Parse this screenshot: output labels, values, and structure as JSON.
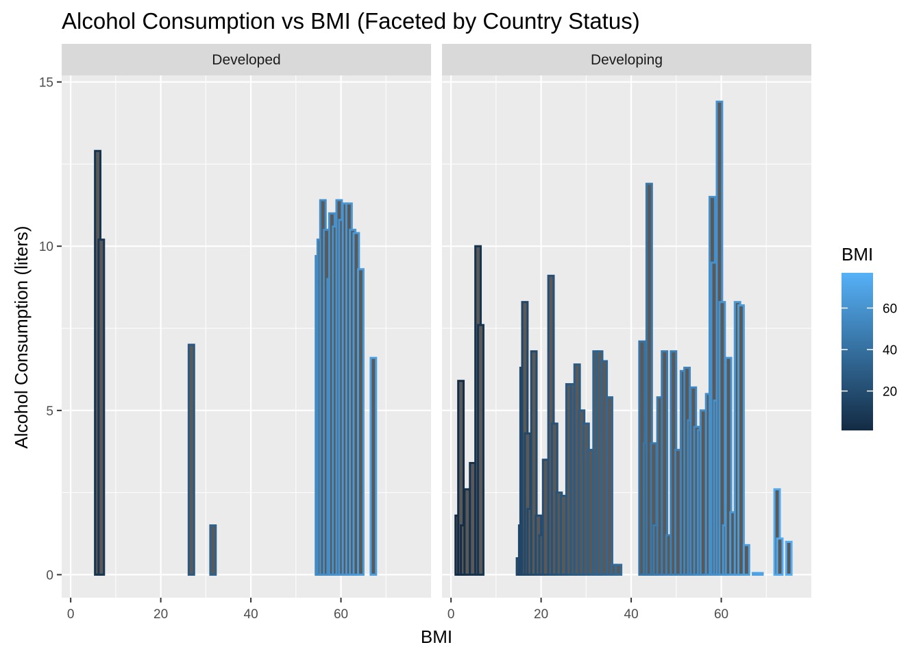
{
  "chart_data": {
    "type": "bar",
    "title": "Alcohol Consumption vs BMI (Faceted by Country Status)",
    "xlabel": "BMI",
    "ylabel": "Alcohol Consumption (liters)",
    "xlim": [
      -2,
      80
    ],
    "ylim": [
      -0.7,
      15.2
    ],
    "x_ticks": [
      0,
      20,
      40,
      60
    ],
    "y_ticks": [
      0,
      5,
      10,
      15
    ],
    "grid": true,
    "bar_fill": "#595959",
    "colors": {
      "low": "#132B43",
      "high": "#56B1F7",
      "panel_bg": "#EBEBEB",
      "strip_bg": "#D9D9D9",
      "grid": "#FFFFFF"
    },
    "legend": {
      "title": "BMI",
      "position": "right",
      "min": 1,
      "max": 77,
      "ticks": [
        20,
        40,
        60
      ]
    },
    "facets": [
      {
        "name": "Developed",
        "bars": [
          {
            "x": 6.0,
            "y": 12.9
          },
          {
            "x": 6.8,
            "y": 10.2
          },
          {
            "x": 26.8,
            "y": 7.0
          },
          {
            "x": 31.6,
            "y": 1.5
          },
          {
            "x": 55.0,
            "y": 9.7
          },
          {
            "x": 55.4,
            "y": 10.2
          },
          {
            "x": 56.0,
            "y": 11.4
          },
          {
            "x": 56.8,
            "y": 10.5
          },
          {
            "x": 57.6,
            "y": 9.0
          },
          {
            "x": 58.0,
            "y": 11.0
          },
          {
            "x": 58.8,
            "y": 10.6
          },
          {
            "x": 59.6,
            "y": 11.4
          },
          {
            "x": 60.2,
            "y": 10.8
          },
          {
            "x": 61.0,
            "y": 11.3
          },
          {
            "x": 61.8,
            "y": 11.3
          },
          {
            "x": 62.6,
            "y": 10.5
          },
          {
            "x": 63.4,
            "y": 10.4
          },
          {
            "x": 64.4,
            "y": 9.3
          },
          {
            "x": 67.2,
            "y": 6.6
          }
        ]
      },
      {
        "name": "Developing",
        "bars": [
          {
            "x": 1.6,
            "y": 1.8
          },
          {
            "x": 2.2,
            "y": 5.9
          },
          {
            "x": 2.8,
            "y": 1.5
          },
          {
            "x": 3.6,
            "y": 2.6
          },
          {
            "x": 4.8,
            "y": 3.4
          },
          {
            "x": 6.0,
            "y": 10.0
          },
          {
            "x": 6.6,
            "y": 7.6
          },
          {
            "x": 15.2,
            "y": 0.5
          },
          {
            "x": 15.7,
            "y": 1.5
          },
          {
            "x": 16.0,
            "y": 6.3
          },
          {
            "x": 16.4,
            "y": 8.3
          },
          {
            "x": 17.0,
            "y": 4.3
          },
          {
            "x": 17.6,
            "y": 2.0
          },
          {
            "x": 18.4,
            "y": 6.8
          },
          {
            "x": 19.4,
            "y": 1.8
          },
          {
            "x": 20.2,
            "y": 1.2
          },
          {
            "x": 21.0,
            "y": 3.5
          },
          {
            "x": 22.2,
            "y": 9.1
          },
          {
            "x": 23.0,
            "y": 4.6
          },
          {
            "x": 24.0,
            "y": 2.5
          },
          {
            "x": 25.0,
            "y": 2.4
          },
          {
            "x": 26.2,
            "y": 5.8
          },
          {
            "x": 27.2,
            "y": 5.8
          },
          {
            "x": 28.0,
            "y": 6.4
          },
          {
            "x": 29.0,
            "y": 5.0
          },
          {
            "x": 30.0,
            "y": 4.6
          },
          {
            "x": 31.0,
            "y": 3.8
          },
          {
            "x": 32.2,
            "y": 6.8
          },
          {
            "x": 33.0,
            "y": 6.8
          },
          {
            "x": 34.0,
            "y": 6.5
          },
          {
            "x": 35.2,
            "y": 5.4
          },
          {
            "x": 36.2,
            "y": 0.3
          },
          {
            "x": 37.2,
            "y": 0.3
          },
          {
            "x": 42.4,
            "y": 7.1
          },
          {
            "x": 43.4,
            "y": 4.0
          },
          {
            "x": 44.0,
            "y": 11.9
          },
          {
            "x": 45.0,
            "y": 4.0
          },
          {
            "x": 45.6,
            "y": 1.5
          },
          {
            "x": 46.4,
            "y": 5.4
          },
          {
            "x": 47.4,
            "y": 6.8
          },
          {
            "x": 48.4,
            "y": 1.2
          },
          {
            "x": 49.4,
            "y": 6.8
          },
          {
            "x": 50.4,
            "y": 3.8
          },
          {
            "x": 51.6,
            "y": 6.2
          },
          {
            "x": 52.4,
            "y": 6.3
          },
          {
            "x": 53.2,
            "y": 4.7
          },
          {
            "x": 53.8,
            "y": 5.7
          },
          {
            "x": 54.6,
            "y": 4.5
          },
          {
            "x": 55.4,
            "y": 4.4
          },
          {
            "x": 56.0,
            "y": 5.0
          },
          {
            "x": 57.2,
            "y": 5.5
          },
          {
            "x": 58.0,
            "y": 11.5
          },
          {
            "x": 58.4,
            "y": 9.5
          },
          {
            "x": 59.0,
            "y": 5.3
          },
          {
            "x": 59.6,
            "y": 14.4
          },
          {
            "x": 60.2,
            "y": 8.3
          },
          {
            "x": 61.0,
            "y": 1.5
          },
          {
            "x": 61.6,
            "y": 6.6
          },
          {
            "x": 62.6,
            "y": 1.9
          },
          {
            "x": 63.6,
            "y": 8.3
          },
          {
            "x": 64.4,
            "y": 8.2
          },
          {
            "x": 65.6,
            "y": 0.9
          },
          {
            "x": 67.6,
            "y": 0.05
          },
          {
            "x": 68.6,
            "y": 0.05
          },
          {
            "x": 72.4,
            "y": 2.6
          },
          {
            "x": 73.0,
            "y": 1.1
          },
          {
            "x": 75.0,
            "y": 1.0
          }
        ]
      }
    ]
  }
}
